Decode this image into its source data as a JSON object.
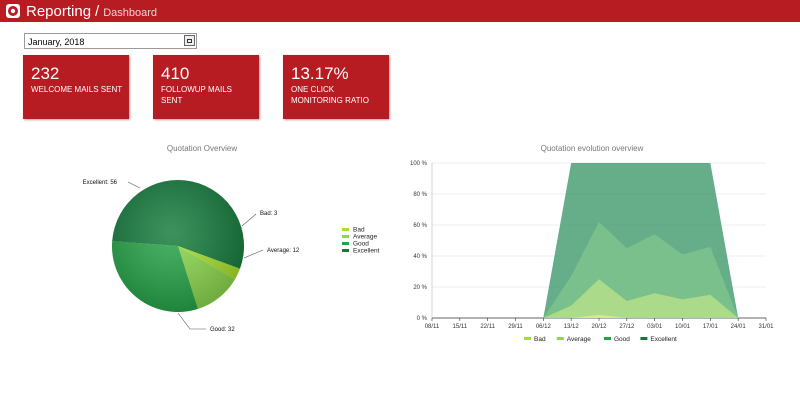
{
  "app": {
    "title": "Reporting",
    "separator": "/",
    "breadcrumb": "Dashboard"
  },
  "date_filter": {
    "value": "January, 2018"
  },
  "tiles": [
    {
      "value": "232",
      "label": "WELCOME MAILS SENT"
    },
    {
      "value": "410",
      "label": "FOLLOWUP MAILS SENT"
    },
    {
      "value": "13.17%",
      "label": "ONE CLICK MONITORING RATIO"
    }
  ],
  "colors": {
    "bad": "#a6e02b",
    "average": "#8ad74a",
    "good": "#23a346",
    "excellent": "#127a3a",
    "brand": "#b71c23"
  },
  "chart_data": [
    {
      "type": "pie",
      "title": "Quotation Overview",
      "slices": [
        {
          "name": "Bad",
          "value": 3,
          "label": "Bad: 3"
        },
        {
          "name": "Average",
          "value": 12,
          "label": "Average: 12"
        },
        {
          "name": "Good",
          "value": 32,
          "label": "Good: 32"
        },
        {
          "name": "Excellent",
          "value": 56,
          "label": "Excellent: 56"
        }
      ],
      "legend": {
        "placement": "right",
        "entries": [
          "Bad",
          "Average",
          "Good",
          "Excellent"
        ]
      }
    },
    {
      "type": "area",
      "title": "Quotation evolution overview",
      "x": [
        "08/11",
        "15/11",
        "22/11",
        "29/11",
        "06/12",
        "13/12",
        "20/12",
        "27/12",
        "03/01",
        "10/01",
        "17/01",
        "24/01",
        "31/01"
      ],
      "yticks": [
        "0 %",
        "20 %",
        "40 %",
        "60 %",
        "80 %",
        "100 %"
      ],
      "ylim": [
        0,
        100
      ],
      "stacked": true,
      "grid": true,
      "series": [
        {
          "name": "Bad",
          "values": [
            0,
            0,
            0,
            0,
            0,
            0,
            2,
            0,
            0,
            0,
            0,
            0,
            null
          ]
        },
        {
          "name": "Average",
          "values": [
            0,
            0,
            0,
            0,
            0,
            8,
            23,
            11,
            16,
            12,
            15,
            0,
            null
          ]
        },
        {
          "name": "Good",
          "values": [
            0,
            0,
            0,
            0,
            0,
            19,
            37,
            34,
            38,
            29,
            31,
            0,
            null
          ]
        },
        {
          "name": "Excellent",
          "values": [
            0,
            0,
            0,
            0,
            0,
            73,
            38,
            55,
            46,
            59,
            54,
            0,
            null
          ]
        }
      ],
      "legend": {
        "placement": "bottom",
        "entries": [
          "Bad",
          "Average",
          "Good",
          "Excellent"
        ]
      }
    }
  ]
}
